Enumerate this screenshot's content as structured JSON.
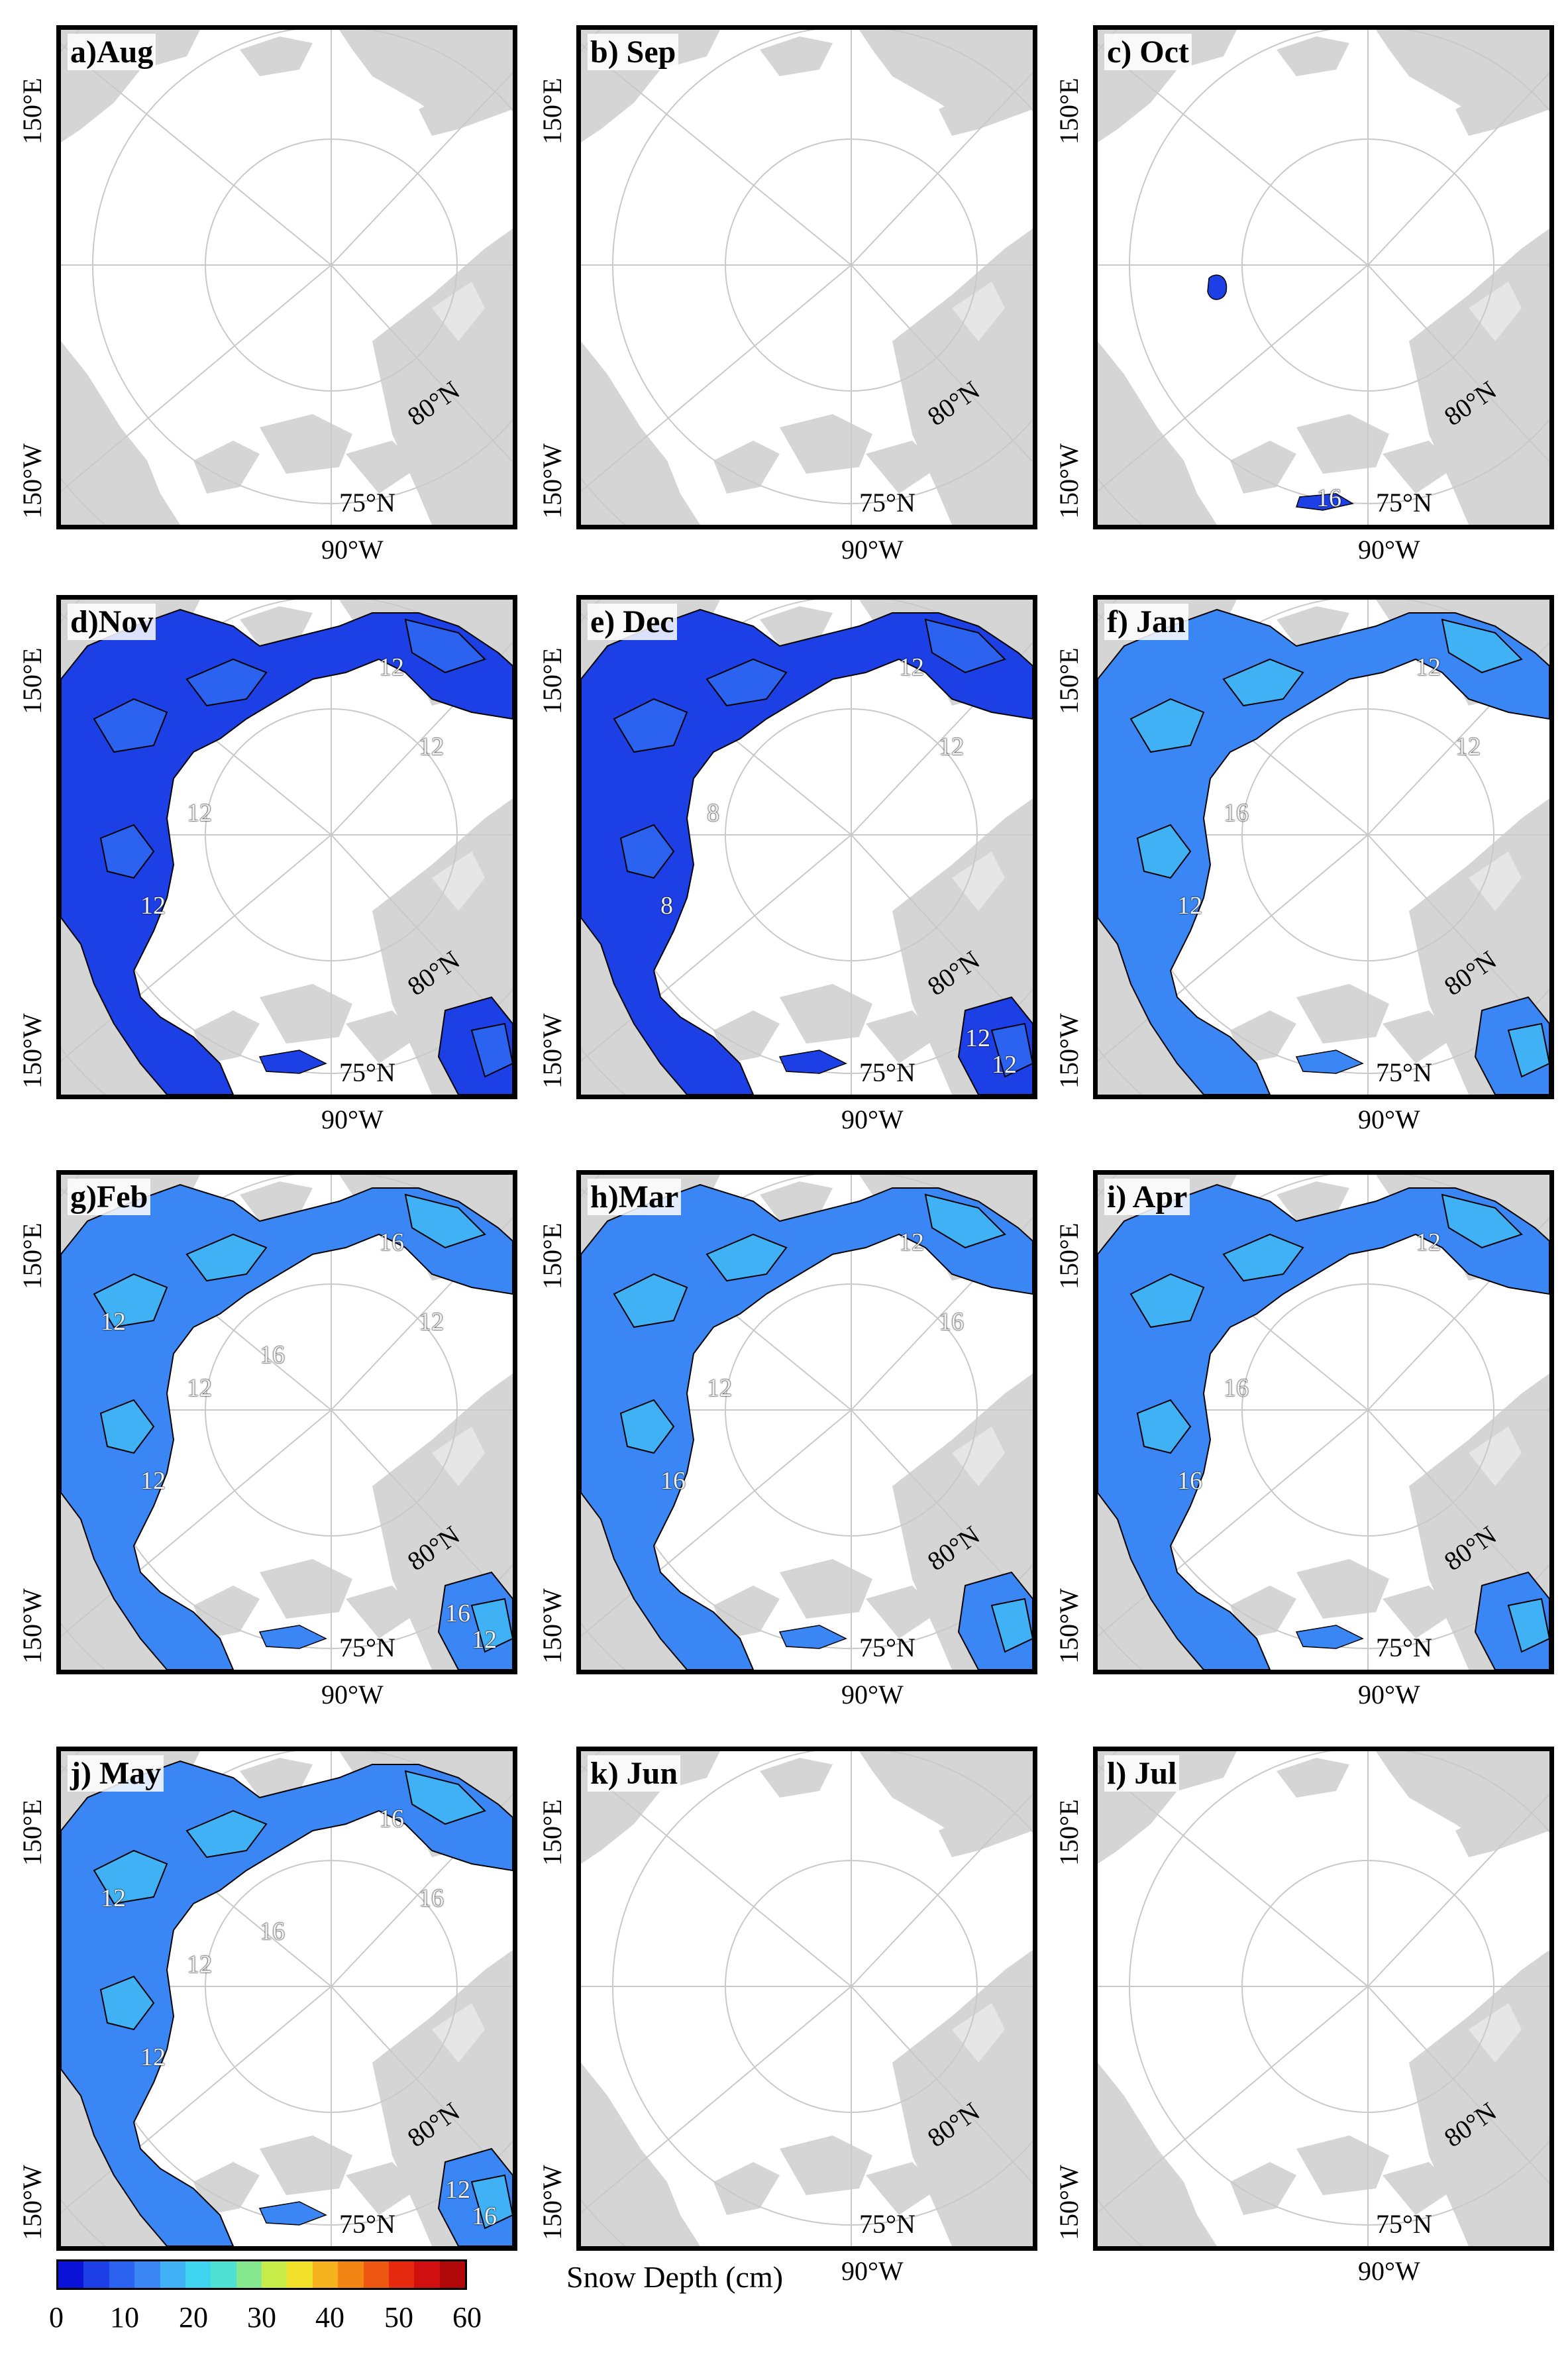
{
  "colors": {
    "land": "#d5d5d5",
    "grid": "#c9c9c9",
    "snow_levels": [
      "#0a12d8",
      "#1c3fe6",
      "#2b63f0",
      "#3a86f5",
      "#40b1f5",
      "#3fd4f0",
      "#4ee0d0",
      "#86e88e",
      "#c8ec4a",
      "#f0e02a",
      "#f5b21c",
      "#f38514",
      "#ee5712",
      "#e52a10",
      "#d01010",
      "#b00808"
    ]
  },
  "axis_labels": {
    "left_top": "150°E",
    "left_bottom": "150°W",
    "bottom": "90°W",
    "lat_80": "80°N",
    "lat_75": "75°N"
  },
  "panels": [
    {
      "label": "a)Aug",
      "coverage": "none",
      "contours": []
    },
    {
      "label": "b) Sep",
      "coverage": "none",
      "contours": []
    },
    {
      "label": "c) Oct",
      "coverage": "trace",
      "contours": [
        "16"
      ]
    },
    {
      "label": "d)Nov",
      "coverage": "partial",
      "contours": [
        "12",
        "12",
        "12",
        "12"
      ]
    },
    {
      "label": "e) Dec",
      "coverage": "partial",
      "contours": [
        "8",
        "8",
        "12",
        "12",
        "12",
        "12"
      ]
    },
    {
      "label": "f) Jan",
      "coverage": "full",
      "contours": [
        "16",
        "12",
        "12",
        "12"
      ]
    },
    {
      "label": "g)Feb",
      "coverage": "full",
      "contours": [
        "12",
        "12",
        "16",
        "12",
        "16",
        "12",
        "12",
        "16"
      ]
    },
    {
      "label": "h)Mar",
      "coverage": "full",
      "contours": [
        "12",
        "16",
        "12",
        "16"
      ]
    },
    {
      "label": "i) Apr",
      "coverage": "full",
      "contours": [
        "16",
        "16",
        "12"
      ]
    },
    {
      "label": "j) May",
      "coverage": "full",
      "contours": [
        "12",
        "12",
        "16",
        "16",
        "12",
        "16",
        "12",
        "16"
      ]
    },
    {
      "label": "k) Jun",
      "coverage": "none",
      "contours": []
    },
    {
      "label": "l) Jul",
      "coverage": "none",
      "contours": []
    }
  ],
  "legend": {
    "title": "Snow Depth (cm)",
    "ticks": [
      "0",
      "10",
      "20",
      "30",
      "40",
      "50",
      "60"
    ]
  }
}
